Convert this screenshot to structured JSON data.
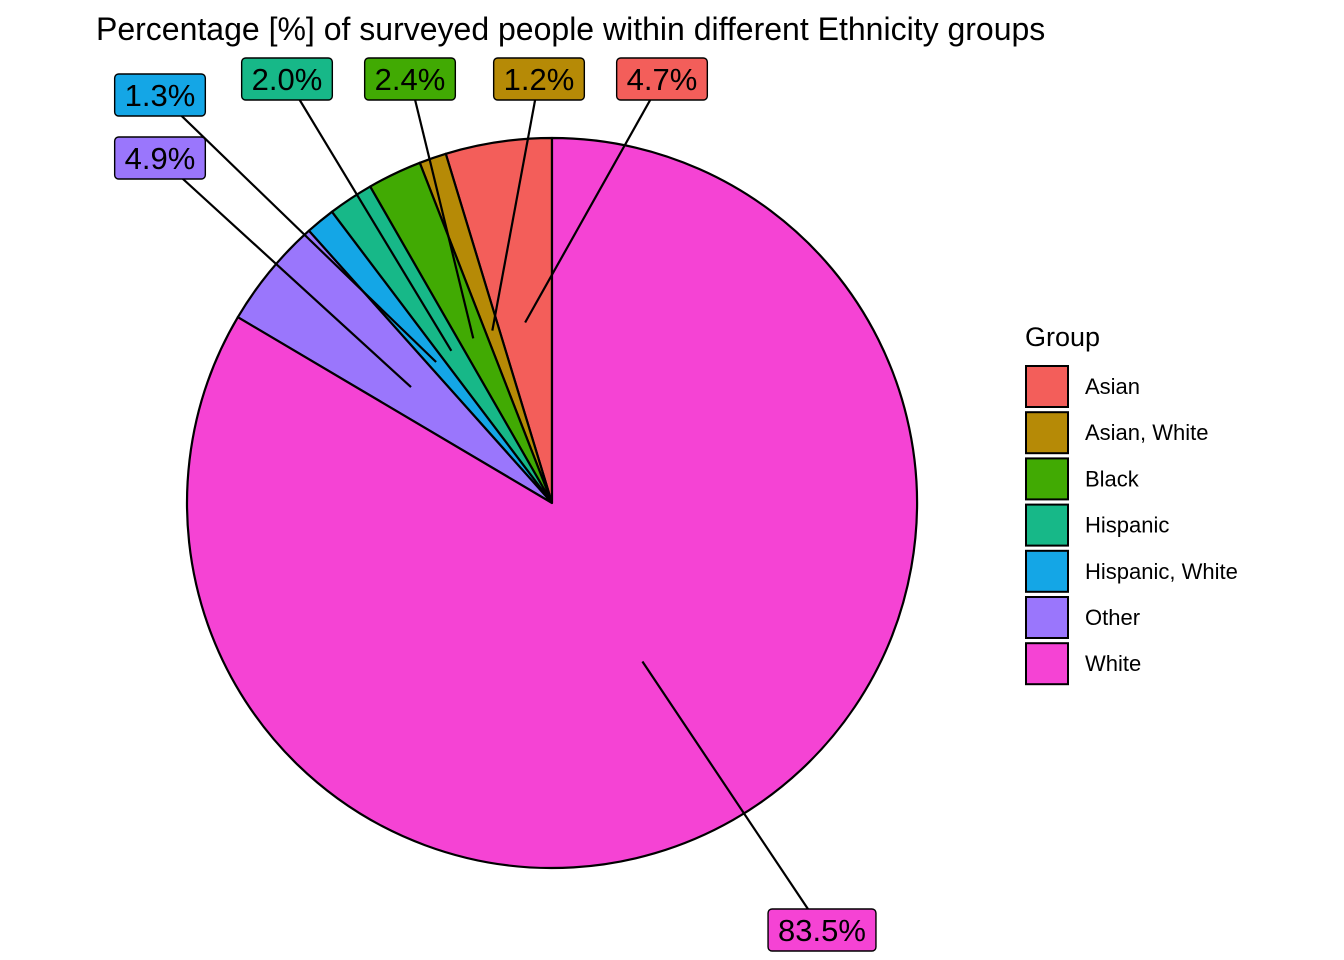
{
  "chart_data": {
    "type": "pie",
    "title": "Percentage [%] of surveyed people within different Ethnicity groups",
    "legend_title": "Group",
    "legend_position": "right",
    "slices": [
      {
        "name": "Asian",
        "value": 4.7,
        "label": "4.7%",
        "color": "#F35E5A"
      },
      {
        "name": "Asian, White",
        "value": 1.2,
        "label": "1.2%",
        "color": "#B68A06"
      },
      {
        "name": "Black",
        "value": 2.4,
        "label": "2.4%",
        "color": "#41AA03"
      },
      {
        "name": "Hispanic",
        "value": 2.0,
        "label": "2.0%",
        "color": "#17B888"
      },
      {
        "name": "Hispanic, White",
        "value": 1.3,
        "label": "1.3%",
        "color": "#14A6E6"
      },
      {
        "name": "Other",
        "value": 4.9,
        "label": "4.9%",
        "color": "#9A76FC"
      },
      {
        "name": "White",
        "value": 83.5,
        "label": "83.5%",
        "color": "#F543D4"
      }
    ]
  }
}
